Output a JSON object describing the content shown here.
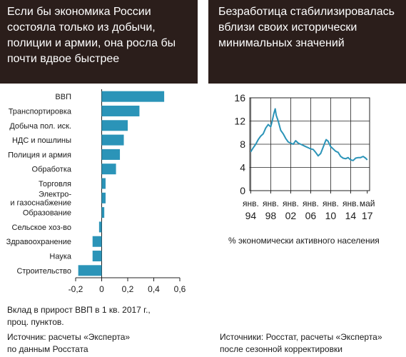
{
  "left_panel": {
    "header": "Если бы экономика России\nсостояла только из добычи,\nполиции и армии, она росла бы\nпочти вдвое быстрее",
    "xlabel": "Вклад в прирост ВВП в 1 кв. 2017 г.,\nпроц. пунктов.",
    "source": "Источник: расчеты «Эксперта»\nпо данным Росстата"
  },
  "right_panel": {
    "header": "Безработица стабилизировалась\nвблизи своих исторически\nминимальных значений",
    "ylabel": "% экономически активного населения",
    "source": "Источники: Росстат, расчеты «Эксперта»\nпосле сезонной корректировки"
  },
  "colors": {
    "bar": "#2b94b8",
    "line": "#2b94b8",
    "header_bg": "#2b1e1b"
  },
  "chart_data": [
    {
      "type": "bar",
      "orientation": "horizontal",
      "categories": [
        "ВВП",
        "Транспортировка",
        "Добыча пол. иск.",
        "НДС и пошлины",
        "Полиция и армия",
        "Обработка",
        "Торговля",
        "Электро-\nи газоснабжение",
        "Образование",
        "Сельское хоз-во",
        "Здравоохранение",
        "Наука",
        "Строительство"
      ],
      "values": [
        0.48,
        0.29,
        0.2,
        0.17,
        0.14,
        0.11,
        0.03,
        0.03,
        0.02,
        -0.02,
        -0.07,
        -0.07,
        -0.18
      ],
      "xlim": [
        -0.2,
        0.6
      ],
      "xticks": [
        "-0,2",
        "0",
        "0,2",
        "0,4",
        "0,6"
      ],
      "xticks_values": [
        -0.2,
        0,
        0.2,
        0.4,
        0.6
      ]
    },
    {
      "type": "line",
      "ylim": [
        0,
        16
      ],
      "yticks": [
        "0",
        "4",
        "8",
        "12",
        "16"
      ],
      "xtick_labels_top": [
        "янв.",
        "янв.",
        "янв.",
        "янв.",
        "янв.",
        "янв.",
        "май"
      ],
      "xtick_labels_bottom": [
        "94",
        "98",
        "02",
        "06",
        "10",
        "14",
        "17"
      ],
      "xticks_values": [
        1994,
        1998,
        2002,
        2006,
        2010,
        2014,
        2017.33
      ],
      "xlim": [
        1993.8,
        2017.8
      ],
      "series": [
        {
          "x": [
            1994.0,
            1994.5,
            1995.0,
            1995.5,
            1996.0,
            1996.5,
            1997.0,
            1997.5,
            1998.0,
            1998.3,
            1998.6,
            1998.9,
            1999.1,
            1999.5,
            2000.0,
            2000.5,
            2001.0,
            2001.5,
            2002.0,
            2002.5,
            2003.0,
            2003.5,
            2004.0,
            2004.5,
            2005.0,
            2005.5,
            2006.0,
            2006.5,
            2007.0,
            2007.5,
            2008.0,
            2008.5,
            2008.9,
            2009.1,
            2009.5,
            2010.0,
            2010.5,
            2011.0,
            2011.5,
            2012.0,
            2012.5,
            2013.0,
            2013.5,
            2014.0,
            2014.5,
            2015.0,
            2015.5,
            2016.0,
            2016.5,
            2017.0,
            2017.33
          ],
          "y": [
            6.7,
            7.4,
            8.0,
            8.8,
            9.4,
            9.8,
            10.8,
            11.4,
            11.0,
            12.0,
            13.2,
            14.1,
            13.0,
            12.0,
            10.4,
            9.8,
            9.0,
            8.4,
            8.2,
            8.0,
            8.6,
            8.2,
            8.0,
            7.8,
            7.6,
            7.4,
            7.2,
            7.1,
            6.6,
            6.0,
            6.4,
            7.5,
            8.4,
            8.8,
            8.5,
            7.6,
            7.2,
            6.8,
            6.6,
            5.9,
            5.6,
            5.5,
            5.7,
            5.3,
            5.2,
            5.6,
            5.7,
            5.7,
            5.9,
            5.6,
            5.3
          ]
        }
      ]
    }
  ]
}
